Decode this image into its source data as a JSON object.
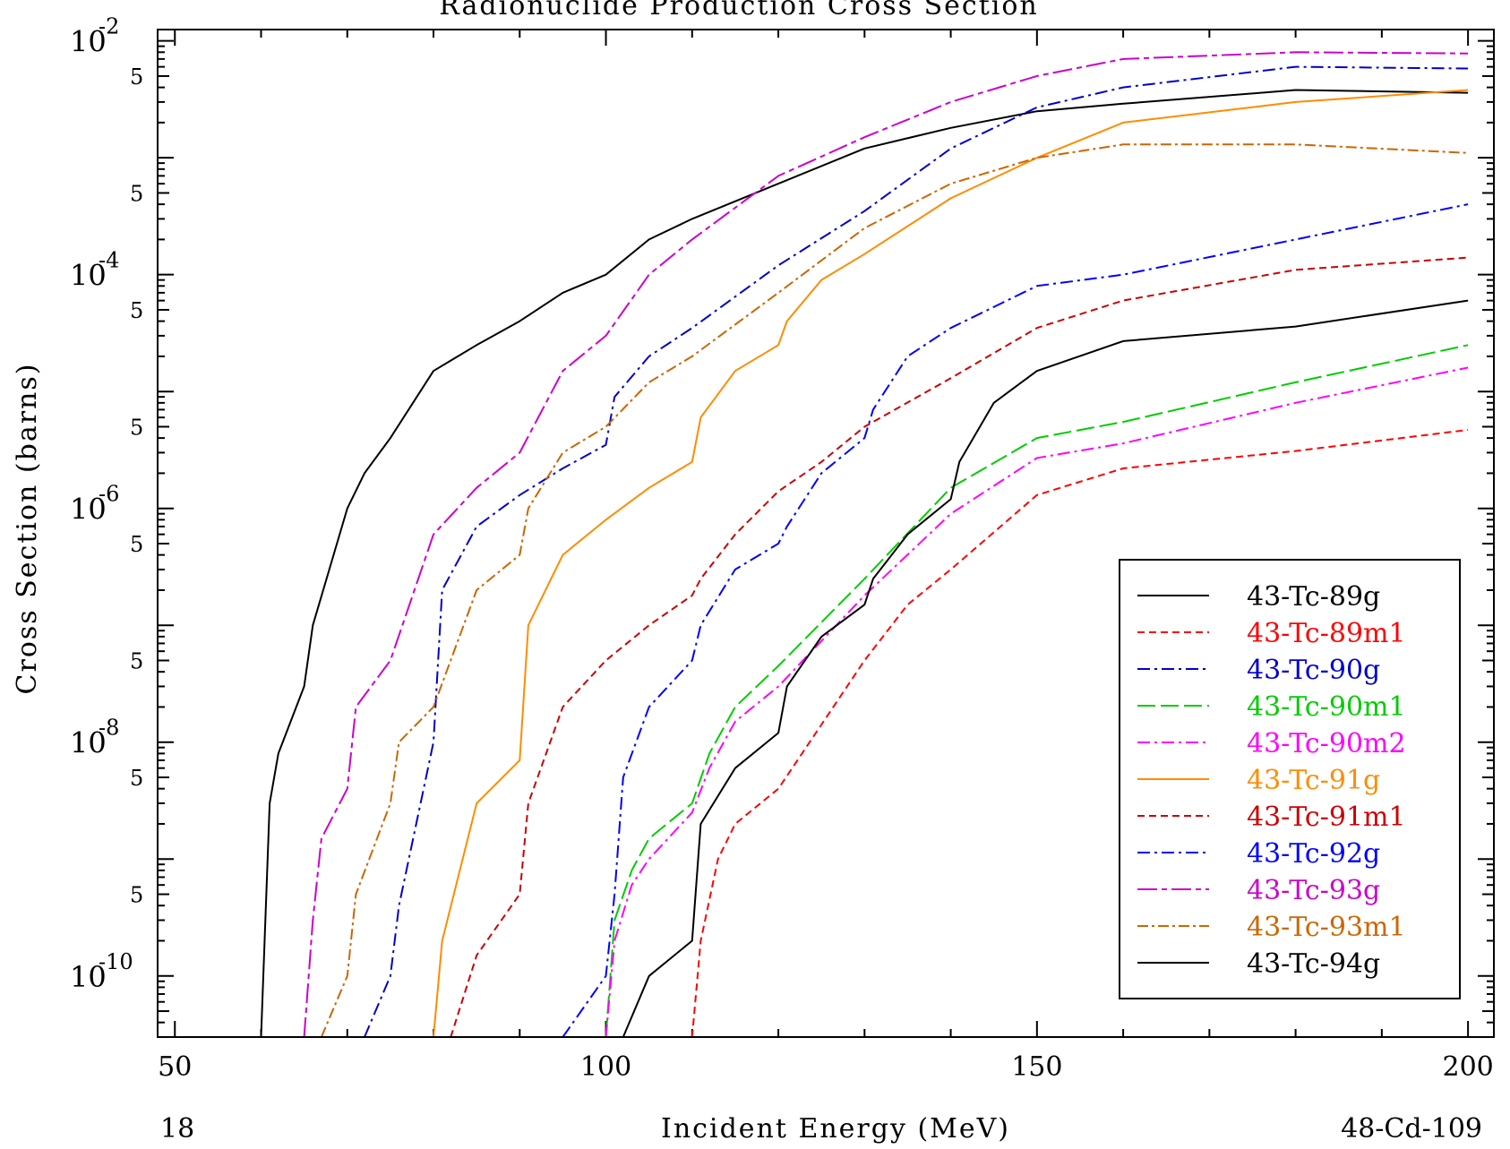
{
  "chart_data": {
    "type": "line",
    "title": "Radionuclide Production Cross Section",
    "xlabel": "Incident Energy (MeV)",
    "ylabel": "Cross Section (barns)",
    "corner_left": "18",
    "corner_right": "48-Cd-109",
    "x_scale": "linear",
    "y_scale": "log",
    "xlim": [
      48,
      203
    ],
    "ylim": [
      3e-11,
      0.0125
    ],
    "x_ticks": [
      50,
      100,
      150,
      200
    ],
    "x_tick_labels": [
      "50",
      "100",
      "150",
      "200"
    ],
    "y_decades": [
      {
        "value": 0.01,
        "base": "10",
        "exp": "-2"
      },
      {
        "value": 0.0001,
        "base": "10",
        "exp": "-4"
      },
      {
        "value": 1e-06,
        "base": "10",
        "exp": "-6"
      },
      {
        "value": 1e-08,
        "base": "10",
        "exp": "-8"
      },
      {
        "value": 1e-10,
        "base": "10",
        "exp": "-10"
      }
    ],
    "y_minor_label": "5",
    "y_minor_values": [
      0.005,
      0.0005,
      5e-05,
      5e-06,
      5e-07,
      5e-08,
      5e-09,
      5e-10
    ],
    "grid": false,
    "legend_position": "bottom-right",
    "series": [
      {
        "name": "43-Tc-89g",
        "color": "#000000",
        "dash": "solid",
        "x": [
          60,
          61,
          62,
          65,
          66,
          70,
          72,
          75,
          80,
          85,
          90,
          95,
          100,
          105,
          110,
          120,
          130,
          140,
          150,
          160,
          180,
          200
        ],
        "y": [
          3e-11,
          3e-09,
          8e-09,
          3e-08,
          1e-07,
          1e-06,
          2e-06,
          4e-06,
          1.5e-05,
          2.5e-05,
          4e-05,
          7e-05,
          0.0001,
          0.0002,
          0.0003,
          0.0006,
          0.0012,
          0.0018,
          0.0025,
          0.0029,
          0.0038,
          0.0036
        ]
      },
      {
        "name": "43-Tc-89m1",
        "color": "#ff0000",
        "dash": "8,5",
        "x": [
          110,
          111,
          113,
          115,
          120,
          130,
          135,
          140,
          150,
          160,
          180,
          200
        ],
        "y": [
          3e-11,
          2e-10,
          1e-09,
          2e-09,
          4e-09,
          5e-08,
          1.5e-07,
          3e-07,
          1.3e-06,
          2.2e-06,
          3.1e-06,
          4.7e-06
        ]
      },
      {
        "name": "43-Tc-90g",
        "color": "#0000cc",
        "dash": "14,5,3,5",
        "x": [
          72,
          75,
          76,
          80,
          81,
          85,
          90,
          95,
          100,
          101,
          105,
          110,
          120,
          130,
          140,
          150,
          160,
          180,
          200
        ],
        "y": [
          3e-11,
          1e-10,
          4e-10,
          1e-08,
          2e-07,
          7e-07,
          1.3e-06,
          2.2e-06,
          3.5e-06,
          9e-06,
          2e-05,
          3.5e-05,
          0.00012,
          0.00035,
          0.0012,
          0.0027,
          0.004,
          0.006,
          0.0058
        ]
      },
      {
        "name": "43-Tc-90m1",
        "color": "#00cc00",
        "dash": "20,6",
        "x": [
          100,
          101,
          103,
          105,
          110,
          112,
          115,
          120,
          130,
          140,
          150,
          160,
          180,
          200
        ],
        "y": [
          3e-11,
          3e-10,
          8e-10,
          1.5e-09,
          3e-09,
          8e-09,
          2e-08,
          4.5e-08,
          2.5e-07,
          1.5e-06,
          4e-06,
          5.5e-06,
          1.2e-05,
          2.5e-05
        ]
      },
      {
        "name": "43-Tc-90m2",
        "color": "#ff00ff",
        "dash": "14,5,3,5",
        "x": [
          100,
          101,
          103,
          105,
          110,
          112,
          115,
          120,
          130,
          140,
          150,
          160,
          180,
          200
        ],
        "y": [
          3e-11,
          2e-10,
          6e-10,
          1e-09,
          2.5e-09,
          6e-09,
          1.5e-08,
          3e-08,
          1.8e-07,
          9e-07,
          2.7e-06,
          3.6e-06,
          8e-06,
          1.6e-05
        ]
      },
      {
        "name": "43-Tc-91g",
        "color": "#ff8c00",
        "dash": "solid",
        "x": [
          80,
          81,
          85,
          90,
          91,
          95,
          100,
          105,
          110,
          111,
          115,
          120,
          121,
          125,
          130,
          140,
          150,
          160,
          180,
          200
        ],
        "y": [
          3e-11,
          2e-10,
          3e-09,
          7e-09,
          1e-07,
          4e-07,
          8e-07,
          1.5e-06,
          2.5e-06,
          6e-06,
          1.5e-05,
          2.5e-05,
          4e-05,
          9e-05,
          0.00015,
          0.00045,
          0.001,
          0.002,
          0.003,
          0.0038
        ]
      },
      {
        "name": "43-Tc-91m1",
        "color": "#cc0000",
        "dash": "8,5",
        "x": [
          82,
          85,
          90,
          91,
          95,
          100,
          105,
          110,
          111,
          115,
          120,
          125,
          130,
          140,
          150,
          160,
          180,
          200
        ],
        "y": [
          3e-11,
          1.5e-10,
          5e-10,
          3e-09,
          2e-08,
          5e-08,
          1e-07,
          1.8e-07,
          2.5e-07,
          6e-07,
          1.4e-06,
          2.5e-06,
          5e-06,
          1.3e-05,
          3.5e-05,
          6e-05,
          0.00011,
          0.00014
        ]
      },
      {
        "name": "43-Tc-92g",
        "color": "#0000ff",
        "dash": "14,5,3,5",
        "x": [
          95,
          100,
          101,
          102,
          105,
          110,
          111,
          115,
          120,
          121,
          125,
          130,
          131,
          135,
          140,
          150,
          160,
          180,
          200
        ],
        "y": [
          3e-11,
          1e-10,
          5e-10,
          5e-09,
          2e-08,
          5e-08,
          1e-07,
          3e-07,
          5e-07,
          7e-07,
          2e-06,
          4e-06,
          7e-06,
          2e-05,
          3.5e-05,
          8e-05,
          0.0001,
          0.0002,
          0.0004
        ]
      },
      {
        "name": "43-Tc-93g",
        "color": "#cc00cc",
        "dash": "22,5,6,5",
        "x": [
          65,
          66,
          67,
          70,
          71,
          75,
          80,
          85,
          90,
          95,
          100,
          105,
          110,
          120,
          130,
          140,
          150,
          160,
          180,
          200
        ],
        "y": [
          3e-11,
          3e-10,
          1.5e-09,
          4e-09,
          2e-08,
          5e-08,
          6e-07,
          1.5e-06,
          3e-06,
          1.5e-05,
          3e-05,
          0.0001,
          0.0002,
          0.0007,
          0.0015,
          0.003,
          0.005,
          0.007,
          0.008,
          0.0078
        ]
      },
      {
        "name": "43-Tc-93m1",
        "color": "#cc6600",
        "dash": "12,4,3,4",
        "x": [
          67,
          70,
          71,
          75,
          76,
          80,
          85,
          90,
          91,
          95,
          100,
          105,
          110,
          120,
          130,
          140,
          150,
          160,
          180,
          200
        ],
        "y": [
          3e-11,
          1e-10,
          5e-10,
          3e-09,
          1e-08,
          2e-08,
          2e-07,
          4e-07,
          1e-06,
          3e-06,
          5e-06,
          1.2e-05,
          2e-05,
          7e-05,
          0.00025,
          0.0006,
          0.001,
          0.0013,
          0.0013,
          0.0011
        ]
      },
      {
        "name": "43-Tc-94g",
        "color": "#000000",
        "dash": "solid",
        "x": [
          102,
          105,
          110,
          111,
          115,
          120,
          121,
          125,
          130,
          131,
          135,
          140,
          141,
          145,
          150,
          160,
          180,
          200
        ],
        "y": [
          3e-11,
          1e-10,
          2e-10,
          2e-09,
          6e-09,
          1.2e-08,
          3e-08,
          8e-08,
          1.5e-07,
          2.5e-07,
          6e-07,
          1.2e-06,
          2.5e-06,
          8e-06,
          1.5e-05,
          2.7e-05,
          3.6e-05,
          6e-05
        ]
      }
    ]
  }
}
